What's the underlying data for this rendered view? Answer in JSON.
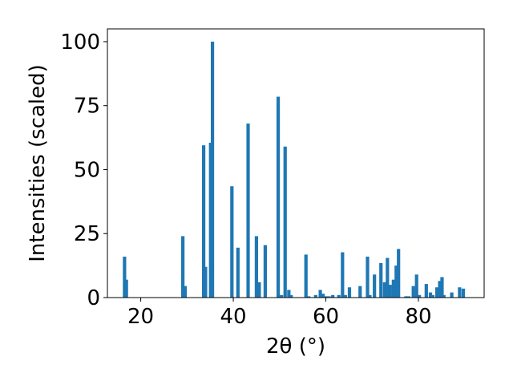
{
  "chart_data": {
    "type": "bar",
    "title": "",
    "xlabel": "2θ (°)",
    "ylabel": "Intensities (scaled)",
    "xlim": [
      12.8,
      94.2
    ],
    "ylim": [
      0,
      105
    ],
    "xticks": [
      20,
      40,
      60,
      80
    ],
    "yticks": [
      0,
      25,
      50,
      75,
      100
    ],
    "xtick_labels": [
      "20",
      "40",
      "60",
      "80"
    ],
    "ytick_labels": [
      "0",
      "25",
      "50",
      "75",
      "100"
    ],
    "bar_color": "#1f77b4",
    "grid": false,
    "legend": "none",
    "x": [
      16.5,
      16.9,
      29.1,
      29.6,
      33.6,
      34.0,
      35.1,
      35.5,
      39.7,
      41.0,
      43.2,
      45.0,
      45.6,
      46.9,
      49.7,
      50.4,
      51.2,
      52.0,
      52.5,
      55.7,
      56.3,
      57.8,
      58.8,
      59.4,
      60.0,
      60.7,
      61.5,
      62.8,
      63.6,
      64.2,
      65.1,
      67.4,
      69.0,
      69.5,
      70.5,
      71.9,
      72.7,
      73.3,
      73.9,
      74.6,
      75.2,
      75.7,
      77.3,
      77.9,
      78.9,
      79.6,
      80.2,
      81.7,
      82.6,
      83.1,
      84.0,
      84.6,
      85.1,
      85.5,
      87.2,
      88.9,
      89.7
    ],
    "values": [
      16,
      7,
      24,
      4.5,
      59.5,
      12,
      60.5,
      100,
      43.5,
      19.5,
      68,
      24,
      6,
      20.5,
      78.5,
      1,
      59,
      3,
      1,
      16.8,
      0.5,
      1,
      3,
      1.5,
      0.5,
      0.5,
      1,
      1,
      17.7,
      1,
      4,
      4.5,
      16,
      1,
      9,
      13.5,
      6,
      15.5,
      5,
      7,
      12.5,
      19,
      0.5,
      0.5,
      4.5,
      9,
      1,
      5.3,
      2,
      1,
      4,
      6.5,
      8,
      1,
      2,
      4,
      3.5
    ]
  }
}
